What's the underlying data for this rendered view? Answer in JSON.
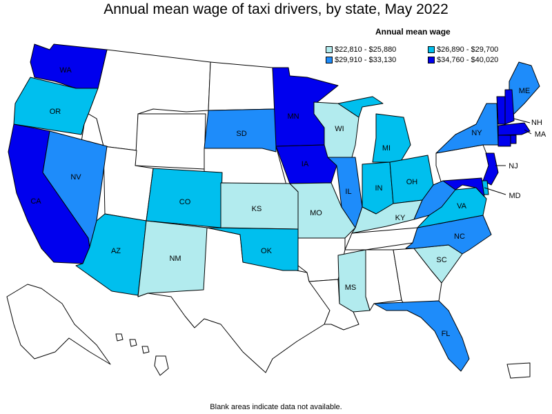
{
  "title": "Annual mean wage of taxi drivers, by state, May 2022",
  "legend": {
    "title": "Annual mean wage",
    "items": [
      {
        "label": "$22,810 - $25,880",
        "color": "#b2ebee"
      },
      {
        "label": "$26,890 - $29,700",
        "color": "#00bfee"
      },
      {
        "label": "$29,910 - $33,130",
        "color": "#1e8cfa"
      },
      {
        "label": "$34,760 - $40,020",
        "color": "#0000ee"
      }
    ]
  },
  "note": "Blank areas indicate data not available.",
  "states": {
    "WA": {
      "label": "WA",
      "tier": 3
    },
    "OR": {
      "label": "OR",
      "tier": 1
    },
    "CA": {
      "label": "CA",
      "tier": 3
    },
    "NV": {
      "label": "NV",
      "tier": 2
    },
    "AZ": {
      "label": "AZ",
      "tier": 1
    },
    "NM": {
      "label": "NM",
      "tier": 0
    },
    "CO": {
      "label": "CO",
      "tier": 1
    },
    "SD": {
      "label": "SD",
      "tier": 2
    },
    "KS": {
      "label": "KS",
      "tier": 0
    },
    "OK": {
      "label": "OK",
      "tier": 1
    },
    "MN": {
      "label": "MN",
      "tier": 3
    },
    "IA": {
      "label": "IA",
      "tier": 3
    },
    "MO": {
      "label": "MO",
      "tier": 0
    },
    "WI": {
      "label": "WI",
      "tier": 0
    },
    "IL": {
      "label": "IL",
      "tier": 2
    },
    "MI": {
      "label": "MI",
      "tier": 1
    },
    "IN": {
      "label": "IN",
      "tier": 1
    },
    "OH": {
      "label": "OH",
      "tier": 1
    },
    "KY": {
      "label": "KY",
      "tier": 0
    },
    "MS": {
      "label": "MS",
      "tier": 0
    },
    "FL": {
      "label": "FL",
      "tier": 2
    },
    "SC": {
      "label": "SC",
      "tier": 0
    },
    "NC": {
      "label": "NC",
      "tier": 2
    },
    "VA": {
      "label": "VA",
      "tier": 1
    },
    "NY": {
      "label": "NY",
      "tier": 2
    },
    "ME": {
      "label": "ME",
      "tier": 2
    },
    "NH": {
      "label": "NH",
      "tier": 3
    },
    "MA": {
      "label": "MA",
      "tier": 3
    },
    "NJ": {
      "label": "NJ",
      "tier": 3
    },
    "MD": {
      "label": "MD",
      "tier": 3
    },
    "VT": {
      "tier": 3
    },
    "CT": {
      "tier": 3
    },
    "RI": {
      "tier": 3
    },
    "DE": {
      "tier": 1
    },
    "WV": {
      "tier": 2
    }
  }
}
